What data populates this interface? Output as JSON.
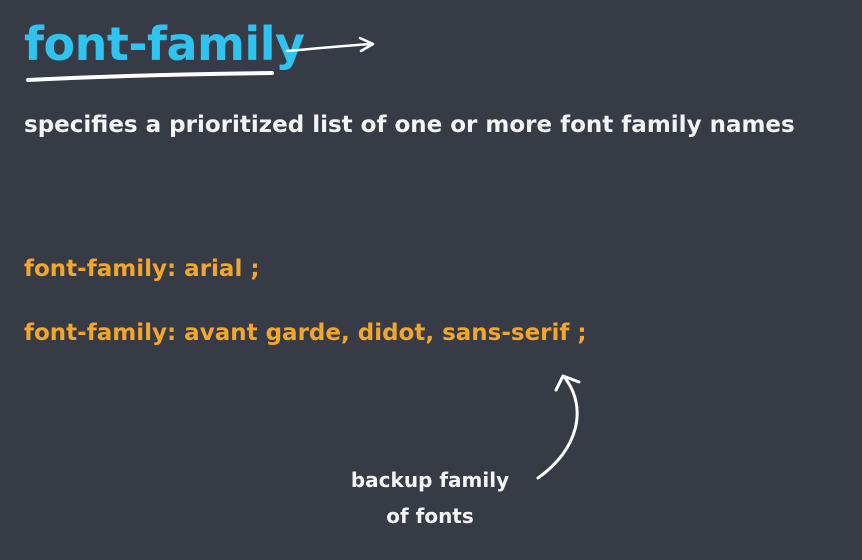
{
  "slide": {
    "title": "font-family",
    "description": "specifies a prioritized list of one or more font family names",
    "examples": [
      "font-family: arial ;",
      "font-family: avant garde, didot, sans-serif ;"
    ],
    "annotation": [
      "backup family",
      "of fonts"
    ]
  },
  "colors": {
    "background": "#373b46",
    "title": "#2fc3f0",
    "code": "#f2a62c",
    "text": "#f4f4f4"
  },
  "icons": {
    "title_arrow": "arrow-right-icon",
    "annotation_arrow": "curved-arrow-up-icon",
    "title_underline": "underline-stroke"
  }
}
